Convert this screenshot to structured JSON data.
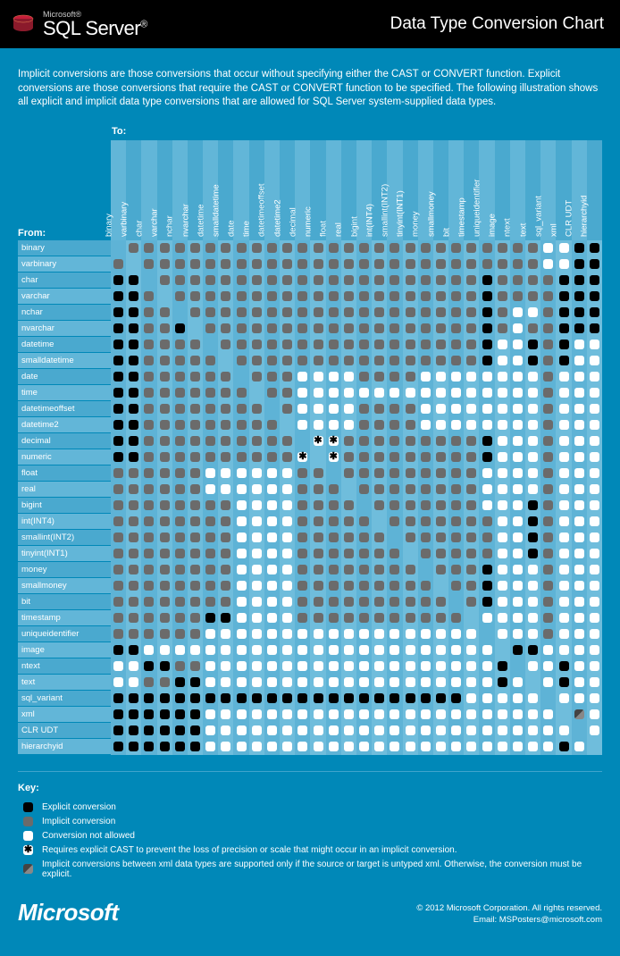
{
  "header": {
    "brand_small": "Microsoft®",
    "brand_main": "SQL Server",
    "title": "Data Type Conversion Chart"
  },
  "intro": "Implicit conversions are those conversions that occur without specifying either the CAST or CONVERT function. Explicit conversions are those conversions that require the CAST or CONVERT function to be specified. The following illustration shows all explicit and implicit data type conversions that are allowed for SQL Server system-supplied data types.",
  "labels": {
    "to": "To:",
    "from": "From:"
  },
  "types": [
    "binary",
    "varbinary",
    "char",
    "varchar",
    "nchar",
    "nvarchar",
    "datetime",
    "smalldatetime",
    "date",
    "time",
    "datetimeoffset",
    "datetime2",
    "decimal",
    "numeric",
    "float",
    "real",
    "bigint",
    "int(INT4)",
    "smallint(INT2)",
    "tinyint(INT1)",
    "money",
    "smallmoney",
    "bit",
    "timestamp",
    "uniqueidentifier",
    "image",
    "ntext",
    "text",
    "sql_variant",
    "xml",
    "CLR UDT",
    "hierarchyid"
  ],
  "legend_e": "e",
  "legend_i": "i",
  "legend_n": "n",
  "legend_s": "s",
  "legend_x": "x",
  "legend_b": " ",
  "matrix": [
    " iiiiiiiiiiiiiiiiiiiiiiiiiiinneee",
    "i iiiiiiiiiiiiiiiiiiiiiiiiiinneee",
    "ee iiiiiiiiiiiiiiiiiiiiieiiiieeee",
    "eei iiiiiiiiiiiiiiiiiiiieiiiieeee",
    "eeii iiiiiiiiiiiiiiiiiiieinnieeee",
    "eeiie iiiiiiiiiiiiiiiiiieiniieeee",
    "eeiiii iiiiiiiiiiiiiiiiienneienne",
    "eeiiiii iiiiiiiiiiiiiiiienneienne",
    "eeiiiiii iiinnnniiiinnnnnnnninnnn",
    "eeiiiiiii iinnnnnnnnnnnnnnnninnnn",
    "eeiiiiiiii innnniiiinnnnnnnninnnn",
    "eeiiiiiiiii nnnniiiinnnnnnnninnnn",
    "eeiiiiiiiiii ssiiiiiiiiiennninnnn",
    "eeiiiiiiiiiis siiiiiiiiiennninnnn",
    "iiiiiinnnnnnii iiiiiiiiinnnninnnn",
    "iiiiiinnnnnniii iiiiiiiinnnninnnn",
    "iiiiiiiinnnniiii iiiiiiinnneinnnn",
    "iiiiiiiinnnniiiii iiiiiiinneinnnn",
    "iiiiiiiinnnniiiiii iiiiiinneinnnn",
    "iiiiiiiinnnniiiiiii iiiiinneinnnn",
    "iiiiiiiinnnniiiiiiii iiiennninnnn",
    "iiiiiiiinnnniiiiiiiii iiennninnnn",
    "iiiiiiiinnnniiiiiiiiii iennninnnn",
    "iiiiiieennnniiiiiiiiiii nnnninnnn",
    "iiiiiinnnnnnnnnnnnnnnnnn nnninnnn",
    "eennnnnnnnnnnnnnnnnnnnnnn eennnnn",
    "nneeiinnnnnnnnnnnnnnnnnnne nnenne",
    "nniieennnnnnnnnnnnnnnnnnnen nenne",
    "eeeeeeeeeeeeeeeeeeeeeeennnnn nnnn",
    "eeeeeennnnnnnnnnnnnnnnnnnnnnn xne",
    "eeeeeennnnnnnnnnnnnnnnnnnnnnnn nn",
    "eeeeeennnnnnnnnnnnnnnnnnnnnnnen  "
  ],
  "key": {
    "title": "Key:",
    "items": [
      {
        "m": "e",
        "t": "Explicit conversion"
      },
      {
        "m": "i",
        "t": "Implicit conversion"
      },
      {
        "m": "n",
        "t": "Conversion not allowed"
      },
      {
        "m": "s",
        "t": "Requires explicit CAST to prevent the loss of precision or scale that might occur in an implicit conversion."
      },
      {
        "m": "x",
        "t": "Implicit conversions between xml data types are supported only if the source or target is untyped xml. Otherwise, the conversion must be explicit."
      }
    ]
  },
  "footer": {
    "logo": "Microsoft",
    "copy1": "© 2012 Microsoft Corporation. All rights reserved.",
    "copy2": "Email: MSPosters@microsoft.com"
  },
  "colors": {
    "bg": "#0088b8",
    "header": "#000000",
    "stripe1": "#4aa9cf",
    "stripe2": "#62b6d8",
    "cell1": "#5eb3d6",
    "cell2": "#6fbddc",
    "explicit": "#000000",
    "implicit": "#6b6b6b",
    "notallowed": "#ffffff"
  }
}
